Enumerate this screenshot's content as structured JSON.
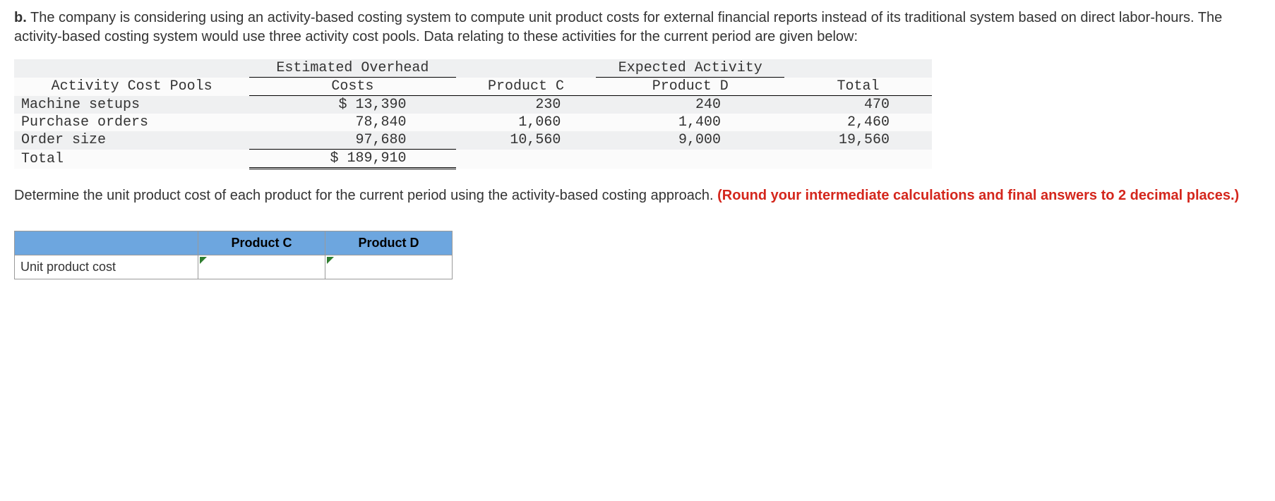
{
  "question": {
    "part_label": "b.",
    "text": "The company is considering using an activity-based costing system to compute unit product costs for external financial reports instead of its traditional system based on direct labor-hours. The activity-based costing system would use three activity cost pools. Data relating to these activities for the current period are given below:"
  },
  "data_table": {
    "headers": {
      "activity_cost_pools": "Activity Cost Pools",
      "estimated_overhead": "Estimated Overhead",
      "costs": "Costs",
      "expected_activity": "Expected Activity",
      "product_c": "Product C",
      "product_d": "Product D",
      "total": "Total"
    },
    "rows": [
      {
        "pool": "Machine setups",
        "cost": "$ 13,390",
        "c": "230",
        "d": "240",
        "t": "470"
      },
      {
        "pool": "Purchase orders",
        "cost": "78,840",
        "c": "1,060",
        "d": "1,400",
        "t": "2,460"
      },
      {
        "pool": "Order size",
        "cost": "97,680",
        "c": "10,560",
        "d": "9,000",
        "t": "19,560"
      }
    ],
    "total_row": {
      "label": "Total",
      "cost": "$ 189,910"
    }
  },
  "instruction": {
    "text": "Determine the unit product cost of each product for the current period using the activity-based costing approach. ",
    "red": "(Round your intermediate calculations and final answers to 2 decimal places.)"
  },
  "answer_table": {
    "col_c": "Product C",
    "col_d": "Product D",
    "row_label": "Unit product cost",
    "value_c": "",
    "value_d": ""
  },
  "style": {
    "font_body": "Arial",
    "font_data": "Courier New",
    "row_alt_bg_odd": "#eff0f1",
    "row_alt_bg_even": "#fbfbfb",
    "header_blue": "#6da6df",
    "red": "#d4261c",
    "indicator_green": "#2f7d2f"
  }
}
